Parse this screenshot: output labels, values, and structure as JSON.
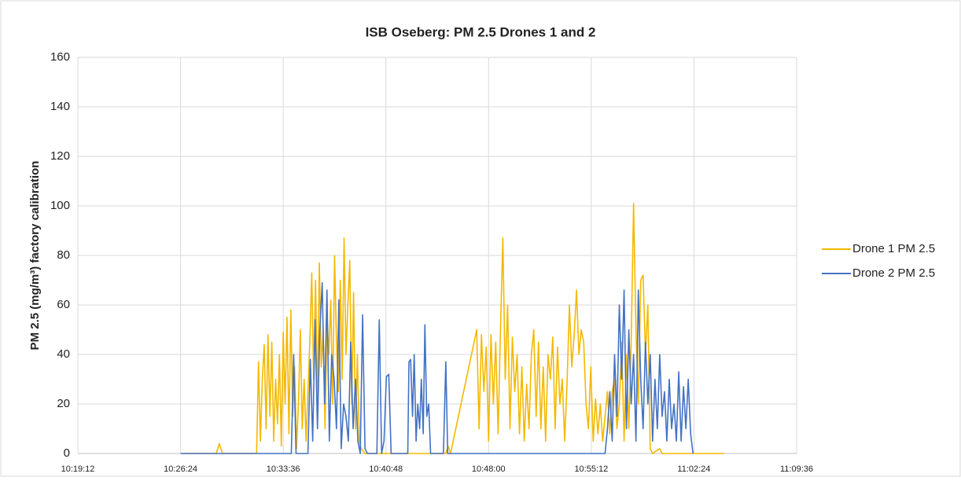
{
  "chart_data": {
    "type": "line",
    "title": "ISB Oseberg:  PM 2.5 Drones 1 and 2",
    "y_label": "PM 2.5 (mg/m³) factory calibration",
    "xlim": [
      37152,
      40176
    ],
    "xticks": [
      {
        "value": 37152,
        "label": "10:19:12"
      },
      {
        "value": 37584,
        "label": "10:26:24"
      },
      {
        "value": 38016,
        "label": "10:33:36"
      },
      {
        "value": 38448,
        "label": "10:40:48"
      },
      {
        "value": 38880,
        "label": "10:48:00"
      },
      {
        "value": 39312,
        "label": "10:55:12"
      },
      {
        "value": 39744,
        "label": "11:02:24"
      },
      {
        "value": 40176,
        "label": "11:09:36"
      }
    ],
    "ylim": [
      0,
      160
    ],
    "yticks": [
      0,
      20,
      40,
      60,
      80,
      100,
      120,
      140,
      160
    ],
    "grid": true,
    "legend": "right",
    "series": [
      {
        "name": "Drone 1 PM 2.5",
        "color": "#f5b800",
        "x": [
          37595,
          37734,
          37747,
          37760,
          37904,
          37912,
          37920,
          37928,
          37936,
          37944,
          37952,
          37960,
          37968,
          37976,
          37984,
          37992,
          38000,
          38008,
          38016,
          38024,
          38032,
          38040,
          38048,
          38056,
          38064,
          38072,
          38080,
          38088,
          38096,
          38104,
          38112,
          38120,
          38128,
          38136,
          38144,
          38152,
          38160,
          38168,
          38176,
          38184,
          38192,
          38200,
          38208,
          38216,
          38224,
          38232,
          38240,
          38248,
          38256,
          38264,
          38272,
          38280,
          38288,
          38296,
          38304,
          38312,
          38320,
          38328,
          38336,
          38344,
          38360,
          38700,
          38710,
          38720,
          38830,
          38840,
          38850,
          38860,
          38870,
          38880,
          38890,
          38900,
          38910,
          38920,
          38930,
          38940,
          38950,
          38960,
          38970,
          38980,
          38990,
          39000,
          39010,
          39020,
          39030,
          39040,
          39050,
          39060,
          39070,
          39080,
          39090,
          39100,
          39110,
          39120,
          39130,
          39140,
          39150,
          39160,
          39170,
          39180,
          39190,
          39200,
          39210,
          39220,
          39230,
          39240,
          39250,
          39260,
          39270,
          39280,
          39290,
          39300,
          39310,
          39320,
          39330,
          39340,
          39350,
          39360,
          39370,
          39380,
          39390,
          39400,
          39410,
          39420,
          39430,
          39440,
          39450,
          39460,
          39470,
          39480,
          39490,
          39500,
          39510,
          39520,
          39530,
          39540,
          39550,
          39560,
          39570,
          39600,
          39610,
          39870
        ],
        "values": [
          0,
          0,
          4,
          0,
          0,
          37,
          5,
          30,
          44,
          10,
          48,
          15,
          45,
          5,
          30,
          12,
          40,
          3,
          49,
          20,
          55,
          8,
          58,
          15,
          35,
          2,
          20,
          50,
          10,
          30,
          5,
          25,
          45,
          73,
          30,
          70,
          20,
          77,
          35,
          50,
          10,
          55,
          40,
          62,
          20,
          80,
          45,
          25,
          70,
          30,
          87,
          40,
          60,
          78,
          20,
          65,
          10,
          40,
          5,
          2,
          0,
          0,
          3,
          0,
          50,
          10,
          48,
          25,
          43,
          5,
          48,
          20,
          45,
          8,
          50,
          87,
          30,
          60,
          10,
          47,
          25,
          40,
          8,
          35,
          5,
          28,
          10,
          40,
          50,
          15,
          45,
          10,
          35,
          5,
          40,
          30,
          47,
          10,
          43,
          20,
          30,
          5,
          28,
          60,
          35,
          48,
          66,
          40,
          50,
          45,
          20,
          10,
          35,
          5,
          22,
          8,
          20,
          5,
          15,
          25,
          8,
          25,
          30,
          10,
          20,
          45,
          5,
          40,
          10,
          45,
          101,
          50,
          20,
          70,
          72,
          40,
          60,
          2,
          0,
          2,
          0,
          0
        ]
      },
      {
        "name": "Drone 2 PM 2.5",
        "color": "#4472c4",
        "x": [
          37584,
          38050,
          38060,
          38070,
          38080,
          38090,
          38100,
          38110,
          38120,
          38130,
          38140,
          38150,
          38160,
          38170,
          38180,
          38190,
          38200,
          38210,
          38220,
          38230,
          38240,
          38250,
          38260,
          38270,
          38280,
          38290,
          38300,
          38310,
          38320,
          38330,
          38340,
          38350,
          38360,
          38370,
          38380,
          38410,
          38420,
          38430,
          38440,
          38450,
          38460,
          38470,
          38540,
          38545,
          38552,
          38560,
          38567,
          38575,
          38582,
          38590,
          38597,
          38605,
          38612,
          38620,
          38628,
          38636,
          38690,
          38700,
          38708,
          39370,
          39380,
          39390,
          39400,
          39410,
          39420,
          39430,
          39440,
          39450,
          39460,
          39470,
          39480,
          39490,
          39500,
          39510,
          39520,
          39530,
          39540,
          39550,
          39560,
          39570,
          39580,
          39590,
          39600,
          39610,
          39620,
          39630,
          39640,
          39650,
          39660,
          39670,
          39680,
          39690,
          39700,
          39710,
          39720,
          39730,
          39740
        ],
        "values": [
          0,
          0,
          40,
          0,
          0,
          0,
          0,
          0,
          0,
          38,
          5,
          54,
          10,
          50,
          69,
          20,
          66,
          5,
          40,
          30,
          10,
          62,
          2,
          20,
          15,
          5,
          45,
          10,
          30,
          5,
          0,
          56,
          2,
          0,
          0,
          0,
          54,
          0,
          5,
          31,
          32,
          0,
          0,
          37,
          38,
          15,
          40,
          5,
          20,
          10,
          30,
          8,
          52,
          15,
          20,
          0,
          0,
          37,
          0,
          0,
          10,
          25,
          5,
          40,
          15,
          60,
          30,
          66,
          10,
          50,
          20,
          40,
          5,
          66,
          30,
          10,
          45,
          20,
          40,
          5,
          30,
          10,
          40,
          15,
          25,
          5,
          30,
          10,
          20,
          5,
          33,
          5,
          27,
          10,
          30,
          8,
          0
        ]
      }
    ]
  }
}
